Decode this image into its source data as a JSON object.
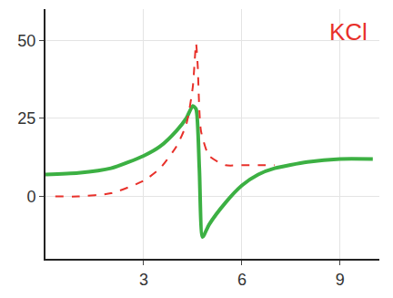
{
  "chart_data": {
    "type": "line",
    "annotations": [
      {
        "text": "KCl",
        "color": "#e8302a"
      }
    ],
    "series": [
      {
        "color": "#3cb043",
        "line_style": "solid",
        "x": [
          0,
          1,
          2,
          3,
          3.5,
          4,
          4.3,
          4.5,
          4.6,
          4.7,
          4.8,
          5.0,
          5.5,
          6,
          6.5,
          7,
          8,
          9,
          10
        ],
        "values": [
          7,
          7.5,
          9,
          13,
          16,
          21,
          25,
          29,
          28,
          9,
          -13,
          -9,
          -2,
          3.5,
          7,
          9,
          11,
          12,
          12
        ]
      },
      {
        "color": "#e8302a",
        "line_style": "dashed",
        "x": [
          0.3,
          1,
          2,
          3,
          3.5,
          4,
          4.3,
          4.5,
          4.6,
          4.65,
          4.75,
          5,
          5.5,
          6,
          6.5,
          7
        ],
        "values": [
          0,
          0,
          1,
          5,
          9,
          16,
          23,
          35,
          49,
          42,
          21,
          13,
          10,
          10,
          10,
          10
        ]
      }
    ],
    "xlim": [
      0,
      10.2
    ],
    "xticks": [
      3,
      6,
      9
    ],
    "ylim": [
      -20,
      60
    ],
    "yticks": [
      0,
      25,
      50
    ],
    "grid": true
  }
}
